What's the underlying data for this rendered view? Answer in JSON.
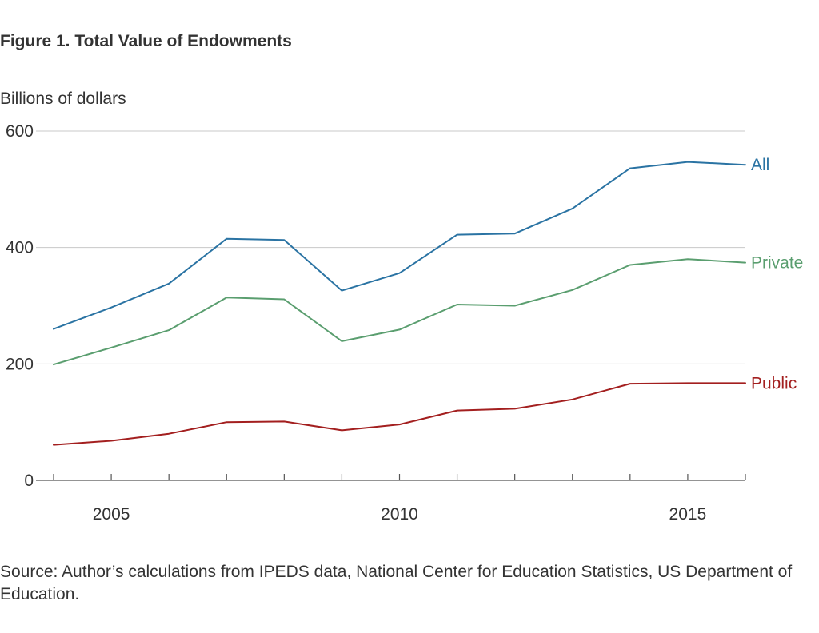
{
  "chart_data": {
    "type": "line",
    "title": "Figure 1. Total Value of Endowments",
    "ylabel": "Billions of dollars",
    "xlabel": "",
    "x": [
      2004,
      2005,
      2006,
      2007,
      2008,
      2009,
      2010,
      2011,
      2012,
      2013,
      2014,
      2015,
      2016
    ],
    "xlim": [
      2004,
      2016
    ],
    "xticks": [
      2005,
      2010,
      2015
    ],
    "ylim": [
      0,
      600
    ],
    "yticks": [
      0,
      200,
      400,
      600
    ],
    "grid": true,
    "series": [
      {
        "name": "All",
        "color": "#2a73a3",
        "values": [
          260,
          297,
          338,
          415,
          413,
          326,
          356,
          422,
          424,
          467,
          536,
          547,
          542
        ]
      },
      {
        "name": "Private",
        "color": "#5a9e6f",
        "values": [
          199,
          228,
          258,
          314,
          311,
          239,
          259,
          302,
          300,
          327,
          370,
          380,
          374
        ]
      },
      {
        "name": "Public",
        "color": "#a31f1f",
        "values": [
          61,
          68,
          80,
          100,
          101,
          86,
          96,
          120,
          123,
          139,
          166,
          167,
          167
        ]
      }
    ],
    "source": "Source:  Author’s calculations from IPEDS data, National Center for Education Statistics, US Department of Education."
  }
}
